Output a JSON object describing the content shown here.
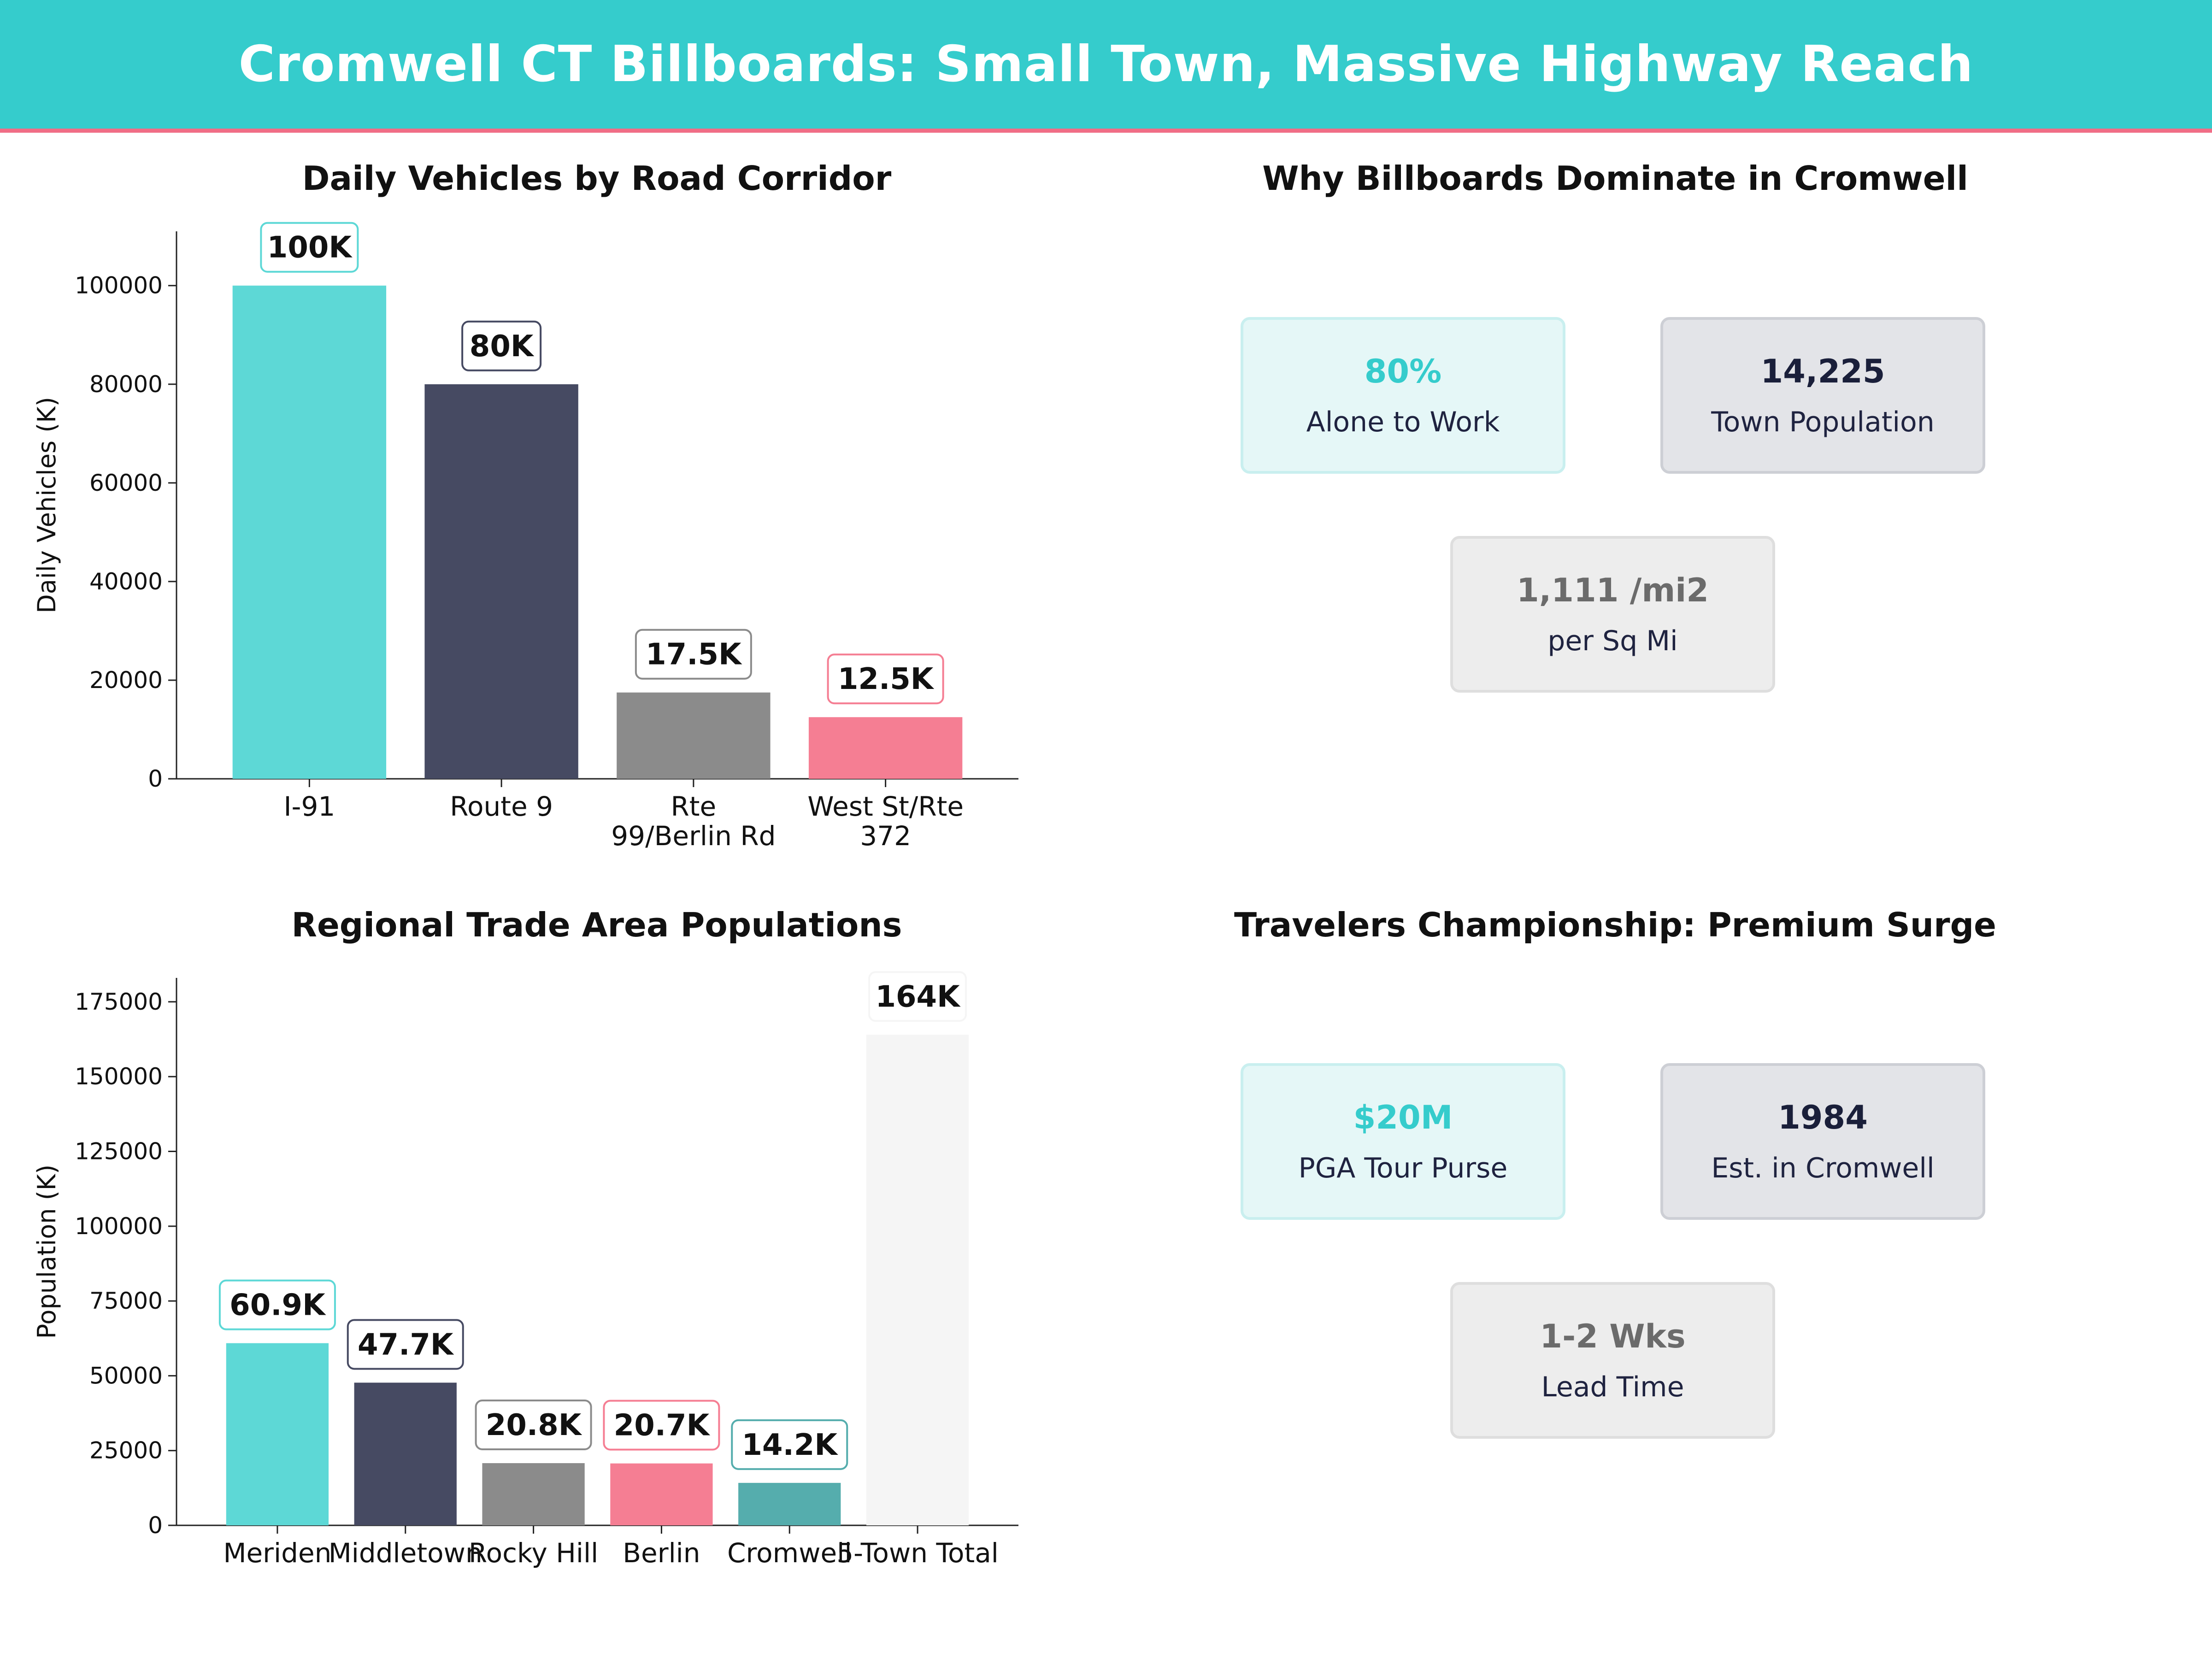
{
  "header": {
    "title": "Cromwell CT Billboards: Small Town, Massive Highway Reach"
  },
  "panels": {
    "vehicles_title": "Daily Vehicles by Road Corridor",
    "why_title": "Why Billboards Dominate in Cromwell",
    "population_title": "Regional Trade Area Populations",
    "travelers_title": "Travelers Championship: Premium Surge"
  },
  "why_cards": [
    {
      "value": "80%",
      "label": "Alone to Work"
    },
    {
      "value": "14,225",
      "label": "Town Population"
    },
    {
      "value": "1,111 /mi2",
      "label": "per Sq Mi"
    }
  ],
  "travelers_cards": [
    {
      "value": "$20M",
      "label": "PGA Tour Purse"
    },
    {
      "value": "1984",
      "label": "Est. in Cromwell"
    },
    {
      "value": "1-2 Wks",
      "label": "Lead Time"
    }
  ],
  "colors": {
    "teal": "#5dd8d6",
    "navy": "#464a62",
    "grey": "#8b8b8b",
    "pink": "#f57e93",
    "darkteal": "#55adad",
    "light": "#f5f5f5"
  },
  "chart_data": [
    {
      "type": "bar",
      "title": "Daily Vehicles by Road Corridor",
      "xlabel": "",
      "ylabel": "Daily Vehicles (K)",
      "categories": [
        [
          "I-91"
        ],
        [
          "Route 9"
        ],
        [
          "Rte",
          "99/Berlin Rd"
        ],
        [
          "West St/Rte",
          "372"
        ]
      ],
      "values": [
        100000,
        80000,
        17500,
        12500
      ],
      "data_labels": [
        "100K",
        "80K",
        "17.5K",
        "12.5K"
      ],
      "colors": [
        "#5dd8d6",
        "#464a62",
        "#8b8b8b",
        "#f57e93"
      ],
      "label_borders": [
        "#5dd8d6",
        "#464a62",
        "#8b8b8b",
        "#f57e93"
      ],
      "yticks": [
        0,
        20000,
        40000,
        60000,
        80000,
        100000
      ],
      "ylim": [
        0,
        111000
      ],
      "grid": false
    },
    {
      "type": "bar",
      "title": "Regional Trade Area Populations",
      "xlabel": "",
      "ylabel": "Population (K)",
      "categories": [
        [
          "Meriden"
        ],
        [
          "Middletown"
        ],
        [
          "Rocky Hill"
        ],
        [
          "Berlin"
        ],
        [
          "Cromwell"
        ],
        [
          "5-Town Total"
        ]
      ],
      "values": [
        60900,
        47700,
        20800,
        20700,
        14200,
        164000
      ],
      "data_labels": [
        "60.9K",
        "47.7K",
        "20.8K",
        "20.7K",
        "14.2K",
        "164K"
      ],
      "colors": [
        "#5dd8d6",
        "#464a62",
        "#8b8b8b",
        "#f57e93",
        "#55adad",
        "#f5f5f5"
      ],
      "label_borders": [
        "#5dd8d6",
        "#464a62",
        "#8b8b8b",
        "#f57e93",
        "#55adad",
        "#f5f5f5"
      ],
      "yticks": [
        0,
        25000,
        50000,
        75000,
        100000,
        125000,
        150000,
        175000
      ],
      "ylim": [
        0,
        183000
      ],
      "grid": false
    }
  ]
}
